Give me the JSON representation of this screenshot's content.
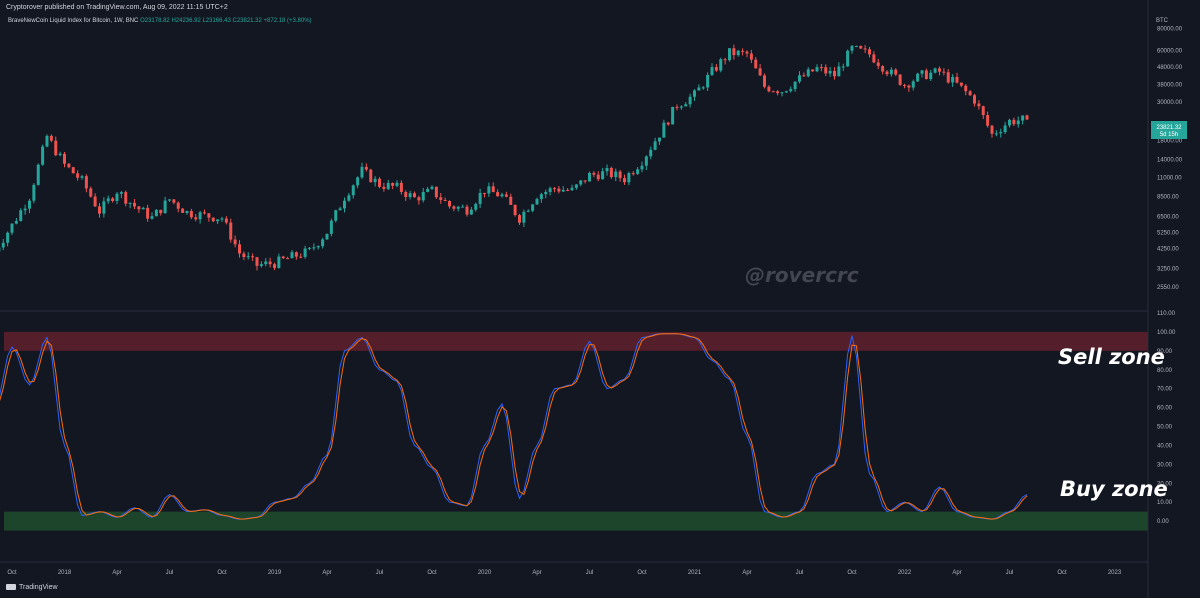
{
  "header": {
    "publisher": "Cryptorover published on TradingView.com, Aug 09, 2022 11:15 UTC+2",
    "symbol": "BraveNewCoin Liquid Index for Bitcoin, 1W, BNC",
    "ohlc": "O23178.82 H24236.92 L23166.43 C23821.32 +872.18 (+3.80%)"
  },
  "price_axis": {
    "currency": "BTC",
    "ticks": [
      "80000.00",
      "60000.00",
      "48000.00",
      "38000.00",
      "30000.00",
      "23821.32",
      "18000.00",
      "14000.00",
      "11000.00",
      "8500.00",
      "6500.00",
      "5250.00",
      "4250.00",
      "3250.00",
      "2550.00"
    ],
    "current_price": "23821.32",
    "countdown": "5d 15h"
  },
  "osc_axis": {
    "ticks": [
      "110.00",
      "100.00",
      "90.00",
      "80.00",
      "70.00",
      "60.00",
      "50.00",
      "40.00",
      "30.00",
      "20.00",
      "10.00",
      "0.00"
    ]
  },
  "time_axis": {
    "ticks": [
      "Oct",
      "2018",
      "Apr",
      "Jul",
      "Oct",
      "2019",
      "Apr",
      "Jul",
      "Oct",
      "2020",
      "Apr",
      "Jul",
      "Oct",
      "2021",
      "Apr",
      "Jul",
      "Oct",
      "2022",
      "Apr",
      "Jul",
      "Oct",
      "2023"
    ]
  },
  "annotations": {
    "sell_zone": "Sell zone",
    "buy_zone": "Buy zone",
    "watermark": "@rovercrc"
  },
  "brand": "TradingView",
  "colors": {
    "background": "#131722",
    "up": "#26a69a",
    "down": "#ef5350",
    "stoch_k": "#2962ff",
    "stoch_d": "#ff6d00",
    "sell_zone": "#5d1f2c",
    "buy_zone": "#1f4a2c",
    "price_label": "#26a69a"
  },
  "chart_data": [
    {
      "type": "candlestick",
      "scale": "log",
      "ylim": [
        2000,
        100000
      ],
      "xlim": [
        "2017-10",
        "2023-01"
      ],
      "price_anchors": [
        {
          "x": "2017-09",
          "y": 4100
        },
        {
          "x": "2017-10",
          "y": 5800
        },
        {
          "x": "2017-11",
          "y": 8500
        },
        {
          "x": "2017-12",
          "y": 19000
        },
        {
          "x": "2018-01",
          "y": 13000
        },
        {
          "x": "2018-02",
          "y": 10500
        },
        {
          "x": "2018-03",
          "y": 7000
        },
        {
          "x": "2018-04",
          "y": 9200
        },
        {
          "x": "2018-05",
          "y": 7500
        },
        {
          "x": "2018-06",
          "y": 6400
        },
        {
          "x": "2018-07",
          "y": 8200
        },
        {
          "x": "2018-08",
          "y": 6900
        },
        {
          "x": "2018-09",
          "y": 6600
        },
        {
          "x": "2018-10",
          "y": 6400
        },
        {
          "x": "2018-11",
          "y": 4000
        },
        {
          "x": "2018-12",
          "y": 3400
        },
        {
          "x": "2019-01",
          "y": 3500
        },
        {
          "x": "2019-02",
          "y": 3800
        },
        {
          "x": "2019-03",
          "y": 4100
        },
        {
          "x": "2019-04",
          "y": 5300
        },
        {
          "x": "2019-05",
          "y": 8500
        },
        {
          "x": "2019-06",
          "y": 12000
        },
        {
          "x": "2019-07",
          "y": 10000
        },
        {
          "x": "2019-08",
          "y": 9600
        },
        {
          "x": "2019-09",
          "y": 8300
        },
        {
          "x": "2019-10",
          "y": 9200
        },
        {
          "x": "2019-11",
          "y": 7500
        },
        {
          "x": "2019-12",
          "y": 7200
        },
        {
          "x": "2020-01",
          "y": 9300
        },
        {
          "x": "2020-02",
          "y": 8600
        },
        {
          "x": "2020-03",
          "y": 6400
        },
        {
          "x": "2020-04",
          "y": 8700
        },
        {
          "x": "2020-05",
          "y": 9500
        },
        {
          "x": "2020-06",
          "y": 9200
        },
        {
          "x": "2020-07",
          "y": 11300
        },
        {
          "x": "2020-08",
          "y": 11700
        },
        {
          "x": "2020-09",
          "y": 10800
        },
        {
          "x": "2020-10",
          "y": 13800
        },
        {
          "x": "2020-11",
          "y": 19700
        },
        {
          "x": "2020-12",
          "y": 29000
        },
        {
          "x": "2021-01",
          "y": 33000
        },
        {
          "x": "2021-02",
          "y": 45000
        },
        {
          "x": "2021-03",
          "y": 58000
        },
        {
          "x": "2021-04",
          "y": 57000
        },
        {
          "x": "2021-05",
          "y": 37000
        },
        {
          "x": "2021-06",
          "y": 35000
        },
        {
          "x": "2021-07",
          "y": 41000
        },
        {
          "x": "2021-08",
          "y": 47000
        },
        {
          "x": "2021-09",
          "y": 43000
        },
        {
          "x": "2021-10",
          "y": 61000
        },
        {
          "x": "2021-11",
          "y": 57000
        },
        {
          "x": "2021-12",
          "y": 46000
        },
        {
          "x": "2022-01",
          "y": 38000
        },
        {
          "x": "2022-02",
          "y": 43000
        },
        {
          "x": "2022-03",
          "y": 45000
        },
        {
          "x": "2022-04",
          "y": 38000
        },
        {
          "x": "2022-05",
          "y": 31000
        },
        {
          "x": "2022-06",
          "y": 19500
        },
        {
          "x": "2022-07",
          "y": 23300
        },
        {
          "x": "2022-08",
          "y": 23821
        }
      ]
    },
    {
      "type": "line",
      "title": "",
      "ylim": [
        -10,
        110
      ],
      "xlim": [
        "2017-10",
        "2023-01"
      ],
      "bands": [
        {
          "name": "Sell zone",
          "from": 90,
          "to": 100
        },
        {
          "name": "Buy zone",
          "from": -5,
          "to": 5
        }
      ],
      "series": [
        {
          "values_at_months": [
            {
              "x": "2017-09",
              "y": 60
            },
            {
              "x": "2017-10",
              "y": 92
            },
            {
              "x": "2017-11",
              "y": 72
            },
            {
              "x": "2017-12",
              "y": 97
            },
            {
              "x": "2018-01",
              "y": 40
            },
            {
              "x": "2018-02",
              "y": 3
            },
            {
              "x": "2018-03",
              "y": 5
            },
            {
              "x": "2018-04",
              "y": 2
            },
            {
              "x": "2018-05",
              "y": 7
            },
            {
              "x": "2018-06",
              "y": 2
            },
            {
              "x": "2018-07",
              "y": 14
            },
            {
              "x": "2018-08",
              "y": 5
            },
            {
              "x": "2018-09",
              "y": 6
            },
            {
              "x": "2018-10",
              "y": 3
            },
            {
              "x": "2018-11",
              "y": 1
            },
            {
              "x": "2018-12",
              "y": 2
            },
            {
              "x": "2019-01",
              "y": 10
            },
            {
              "x": "2019-02",
              "y": 12
            },
            {
              "x": "2019-03",
              "y": 20
            },
            {
              "x": "2019-04",
              "y": 35
            },
            {
              "x": "2019-05",
              "y": 90
            },
            {
              "x": "2019-06",
              "y": 97
            },
            {
              "x": "2019-07",
              "y": 80
            },
            {
              "x": "2019-08",
              "y": 74
            },
            {
              "x": "2019-09",
              "y": 40
            },
            {
              "x": "2019-10",
              "y": 28
            },
            {
              "x": "2019-11",
              "y": 10
            },
            {
              "x": "2019-12",
              "y": 8
            },
            {
              "x": "2020-01",
              "y": 40
            },
            {
              "x": "2020-02",
              "y": 62
            },
            {
              "x": "2020-03",
              "y": 12
            },
            {
              "x": "2020-04",
              "y": 40
            },
            {
              "x": "2020-05",
              "y": 70
            },
            {
              "x": "2020-06",
              "y": 72
            },
            {
              "x": "2020-07",
              "y": 95
            },
            {
              "x": "2020-08",
              "y": 70
            },
            {
              "x": "2020-09",
              "y": 75
            },
            {
              "x": "2020-10",
              "y": 97
            },
            {
              "x": "2020-11",
              "y": 99
            },
            {
              "x": "2020-12",
              "y": 99
            },
            {
              "x": "2021-01",
              "y": 97
            },
            {
              "x": "2021-02",
              "y": 85
            },
            {
              "x": "2021-03",
              "y": 75
            },
            {
              "x": "2021-04",
              "y": 45
            },
            {
              "x": "2021-05",
              "y": 5
            },
            {
              "x": "2021-06",
              "y": 2
            },
            {
              "x": "2021-07",
              "y": 5
            },
            {
              "x": "2021-08",
              "y": 25
            },
            {
              "x": "2021-09",
              "y": 30
            },
            {
              "x": "2021-10",
              "y": 98
            },
            {
              "x": "2021-11",
              "y": 25
            },
            {
              "x": "2021-12",
              "y": 5
            },
            {
              "x": "2022-01",
              "y": 10
            },
            {
              "x": "2022-02",
              "y": 5
            },
            {
              "x": "2022-03",
              "y": 18
            },
            {
              "x": "2022-04",
              "y": 5
            },
            {
              "x": "2022-05",
              "y": 2
            },
            {
              "x": "2022-06",
              "y": 1
            },
            {
              "x": "2022-07",
              "y": 5
            },
            {
              "x": "2022-08",
              "y": 14
            }
          ]
        }
      ]
    }
  ]
}
